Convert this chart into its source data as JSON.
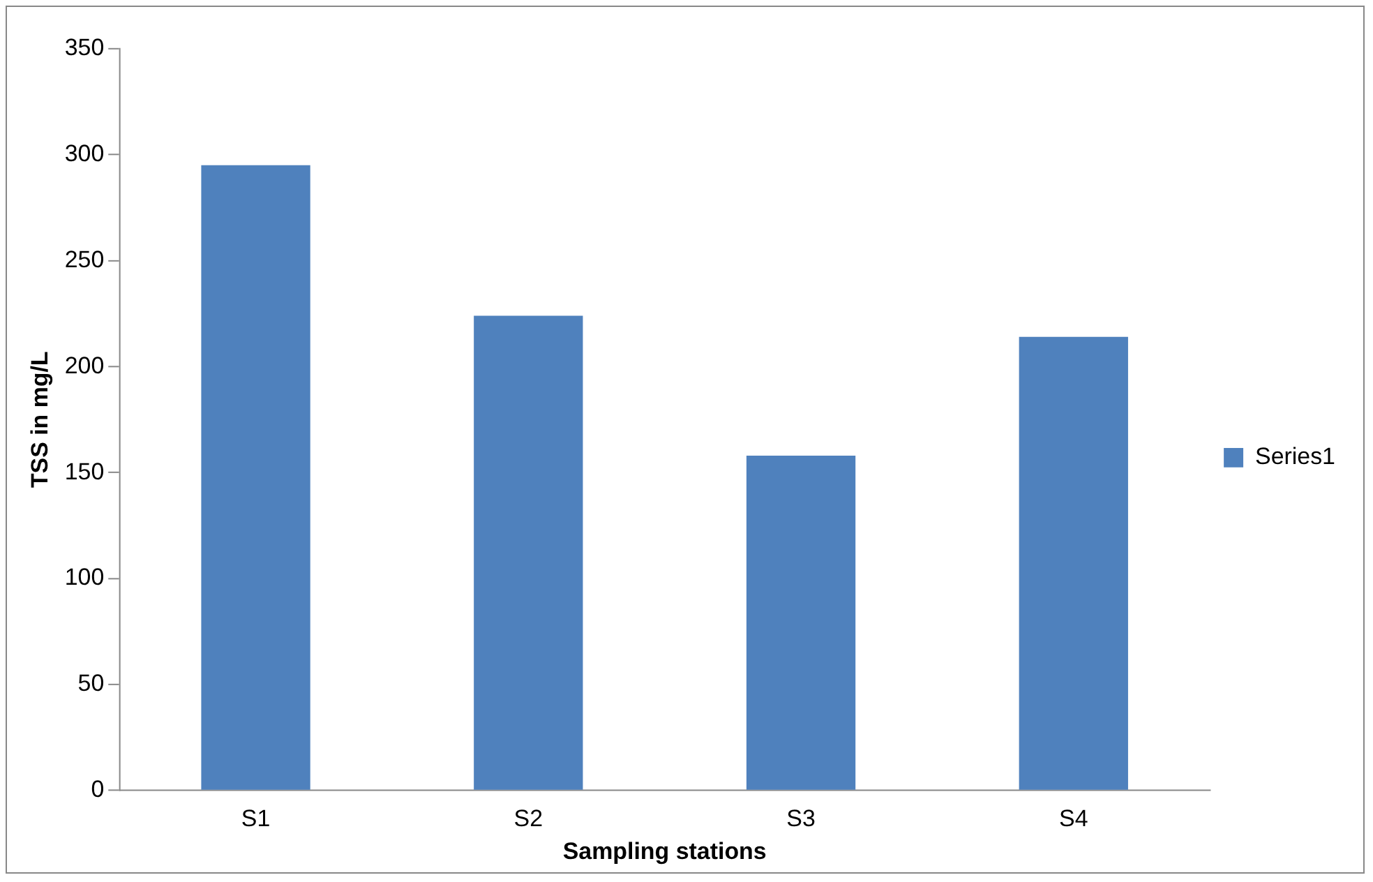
{
  "chart_data": {
    "type": "bar",
    "xlabel": "Sampling stations",
    "ylabel": "TSS in mg/L",
    "categories": [
      "S1",
      "S2",
      "S3",
      "S4"
    ],
    "series": [
      {
        "name": "Series1",
        "color": "#4f81bd",
        "values": [
          295,
          224,
          158,
          214
        ]
      }
    ],
    "ylim": [
      0,
      350
    ],
    "yticks": [
      0,
      50,
      100,
      150,
      200,
      250,
      300,
      350
    ],
    "grid": false,
    "legend": "right"
  }
}
